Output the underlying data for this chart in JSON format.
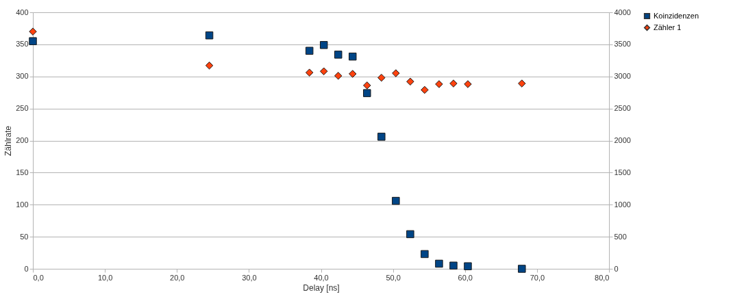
{
  "chart_data": {
    "type": "scatter",
    "xlabel": "Delay [ns]",
    "ylabel": "Zählrate",
    "xlim": [
      0,
      80
    ],
    "xticks": [
      {
        "value": 0,
        "label": "0,0"
      },
      {
        "value": 10,
        "label": "10,0"
      },
      {
        "value": 20,
        "label": "20,0"
      },
      {
        "value": 30,
        "label": "30,0"
      },
      {
        "value": 40,
        "label": "40,0"
      },
      {
        "value": 50,
        "label": "50,0"
      },
      {
        "value": 60,
        "label": "60,0"
      },
      {
        "value": 70,
        "label": "70,0"
      },
      {
        "value": 80,
        "label": "80,0"
      }
    ],
    "ylim": [
      0,
      400
    ],
    "yticks": [
      0,
      50,
      100,
      150,
      200,
      250,
      300,
      350,
      400
    ],
    "y2lim": [
      0,
      4000
    ],
    "y2ticks": [
      0,
      500,
      1000,
      1500,
      2000,
      2500,
      3000,
      3500,
      4000
    ],
    "grid": "y",
    "legend": "right",
    "series": [
      {
        "name": "Koinzidenzen",
        "color": "#004586",
        "marker": "square",
        "x": [
          0,
          24.5,
          38.4,
          40.4,
          42.4,
          44.4,
          46.4,
          48.4,
          50.4,
          52.4,
          54.4,
          56.4,
          58.4,
          60.4,
          67.9
        ],
        "values": [
          355,
          364,
          340,
          349,
          334,
          331,
          274,
          206,
          106,
          54,
          23,
          8,
          5,
          4,
          0
        ]
      },
      {
        "name": "Zähler 1",
        "color": "#ff420e",
        "marker": "diamond",
        "axis": "y2",
        "x": [
          0,
          24.5,
          38.4,
          40.4,
          42.4,
          44.4,
          46.4,
          48.4,
          50.4,
          52.4,
          54.4,
          56.4,
          58.4,
          60.4,
          67.9
        ],
        "values": [
          3700,
          3170,
          3060,
          3080,
          3010,
          3040,
          2860,
          2980,
          3050,
          2920,
          2790,
          2880,
          2890,
          2880,
          2890
        ]
      }
    ]
  }
}
